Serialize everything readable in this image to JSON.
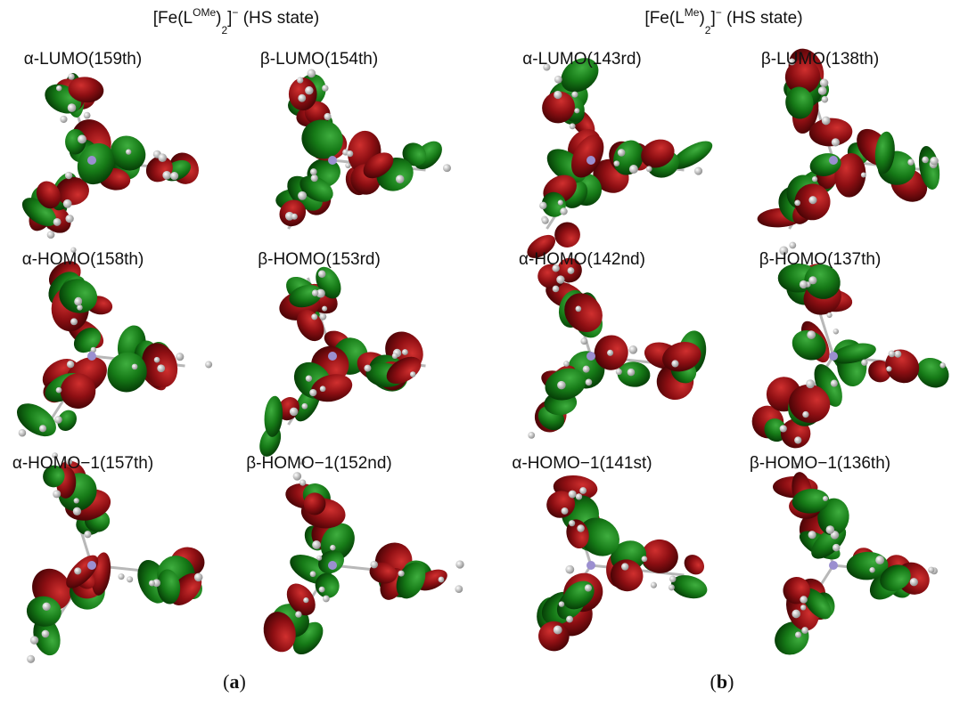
{
  "panels": [
    {
      "title_parts": [
        "[Fe(L",
        "OMe",
        ")",
        "2",
        "]",
        "−",
        " (HS state)"
      ],
      "labels": [
        "α-LUMO(159th)",
        "β-LUMO(154th)",
        "α-HOMO(158th)",
        "β-HOMO(153rd)",
        "α-HOMO−1(157th)",
        "β-HOMO−1(152nd)"
      ],
      "letter": "a"
    },
    {
      "title_parts": [
        "[Fe(L",
        "Me",
        ")",
        "2",
        "]",
        "−",
        " (HS state)"
      ],
      "labels": [
        "α-LUMO(143rd)",
        "β-LUMO(138th)",
        "α-HOMO(142nd)",
        "β-HOMO(137th)",
        "α-HOMO−1(141st)",
        "β-HOMO−1(136th)"
      ],
      "letter": "b"
    }
  ]
}
